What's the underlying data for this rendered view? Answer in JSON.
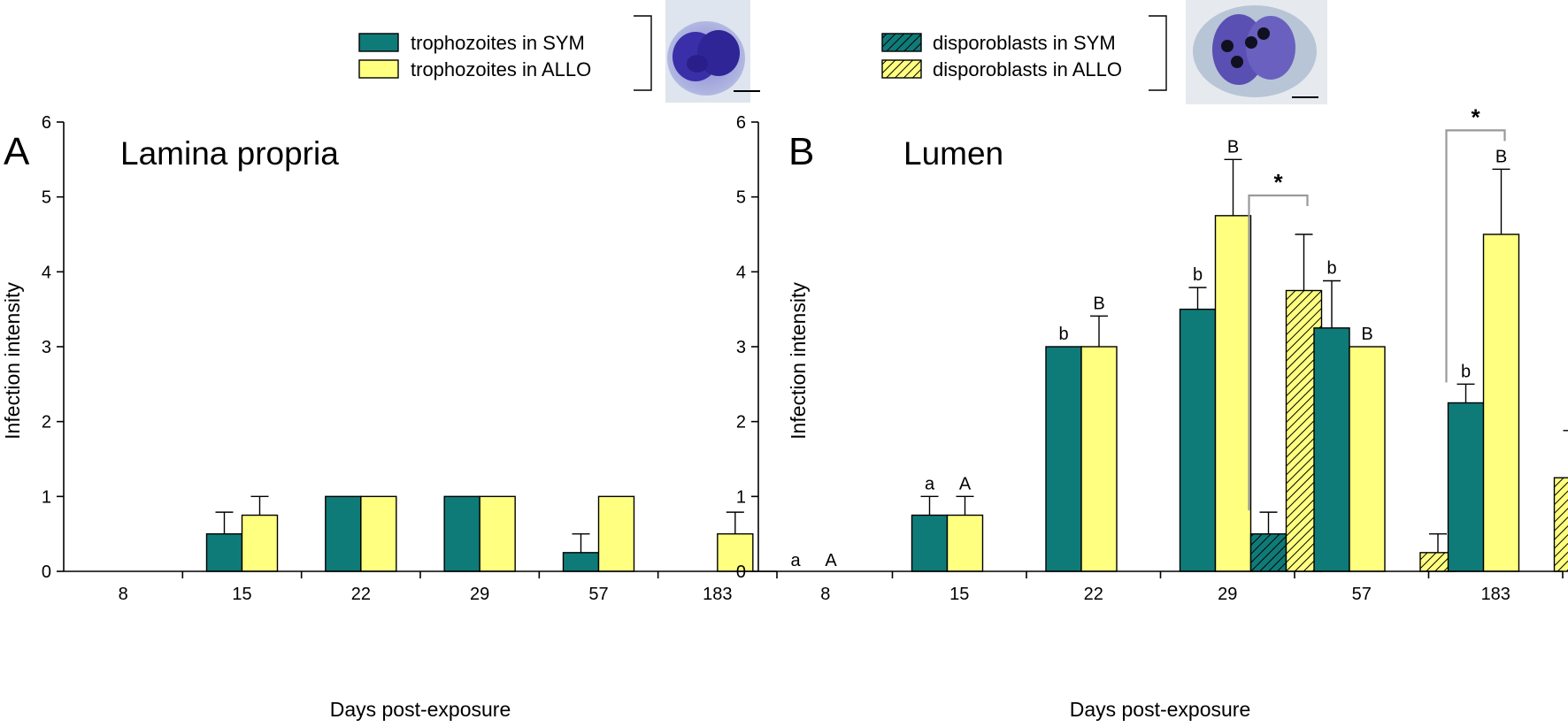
{
  "colors": {
    "sym": "#0f7b78",
    "allo": "#ffff80",
    "bracket": "#999999",
    "micro_bg": "#c9d6e8",
    "micro_cell": "#3a2fa8"
  },
  "legend": {
    "trophozoites": [
      {
        "label": "trophozoites in SYM",
        "fill": "sym",
        "hatched": false
      },
      {
        "label": "trophozoites in ALLO",
        "fill": "allo",
        "hatched": false
      }
    ],
    "disporoblasts": [
      {
        "label": "disporoblasts in SYM",
        "fill": "sym",
        "hatched": true
      },
      {
        "label": "disporoblasts in ALLO",
        "fill": "allo",
        "hatched": true
      }
    ]
  },
  "chart_data": [
    {
      "panel_letter": "A",
      "type": "bar",
      "title": "Lamina propria",
      "xlabel": "Days post-exposure",
      "ylabel": "Infection intensity",
      "ylim": [
        0,
        6
      ],
      "yticks": [
        "0",
        "1",
        "2",
        "3",
        "4",
        "5",
        "6"
      ],
      "categories": [
        "8",
        "15",
        "22",
        "29",
        "57",
        "183"
      ],
      "series": [
        {
          "name": "trophozoites in SYM",
          "fill": "sym",
          "hatched": false,
          "values": [
            0,
            0.5,
            1,
            1,
            0.25,
            0
          ],
          "errors": [
            0,
            0.29,
            0,
            0,
            0.25,
            0
          ],
          "labels": [
            "",
            "",
            "",
            "",
            "",
            ""
          ]
        },
        {
          "name": "trophozoites in ALLO",
          "fill": "allo",
          "hatched": false,
          "values": [
            0,
            0.75,
            1,
            1,
            1,
            0.5
          ],
          "errors": [
            0,
            0.25,
            0,
            0,
            0,
            0.29
          ],
          "labels": [
            "",
            "",
            "",
            "",
            "",
            ""
          ]
        }
      ],
      "zero_labels": [],
      "annotations": []
    },
    {
      "panel_letter": "B",
      "type": "bar",
      "title": "Lumen",
      "xlabel": "Days post-exposure",
      "ylabel": "Infection intensity",
      "ylim": [
        0,
        6
      ],
      "yticks": [
        "0",
        "1",
        "2",
        "3",
        "4",
        "5",
        "6"
      ],
      "categories": [
        "8",
        "15",
        "22",
        "29",
        "57",
        "183"
      ],
      "series": [
        {
          "name": "trophozoites in SYM",
          "fill": "sym",
          "hatched": false,
          "values": [
            0,
            0.75,
            3,
            3.5,
            3.25,
            2.25
          ],
          "errors": [
            0,
            0.25,
            0,
            0.29,
            0.63,
            0.25
          ],
          "labels": [
            "",
            "a",
            "b",
            "b",
            "b",
            "b"
          ]
        },
        {
          "name": "trophozoites in ALLO",
          "fill": "allo",
          "hatched": false,
          "values": [
            0,
            0.75,
            3,
            4.75,
            3,
            4.5
          ],
          "errors": [
            0,
            0.25,
            0.41,
            0.75,
            0,
            0.87
          ],
          "labels": [
            "",
            "A",
            "B",
            "B",
            "B",
            "B"
          ]
        },
        {
          "name": "disporoblasts in SYM",
          "fill": "sym",
          "hatched": true,
          "values": [
            0,
            0,
            0,
            0.5,
            0,
            0
          ],
          "errors": [
            0,
            0,
            0,
            0.29,
            0,
            0
          ],
          "labels": [
            "",
            "",
            "",
            "",
            "",
            ""
          ]
        },
        {
          "name": "disporoblasts in ALLO",
          "fill": "allo",
          "hatched": true,
          "values": [
            0,
            0,
            0,
            3.75,
            0.25,
            1.25
          ],
          "errors": [
            0,
            0,
            0,
            0.75,
            0.25,
            0.63
          ],
          "labels": [
            "",
            "",
            "",
            "",
            "",
            ""
          ]
        }
      ],
      "zero_labels": [
        {
          "category": 0,
          "series": 0,
          "text": "a"
        },
        {
          "category": 0,
          "series": 1,
          "text": "A"
        }
      ],
      "annotations": [
        {
          "text": "*",
          "category": 3,
          "from_series": 2,
          "to_series": 3
        },
        {
          "text": "*",
          "category": 5,
          "from_series": 0,
          "to_series": 1
        }
      ]
    }
  ]
}
